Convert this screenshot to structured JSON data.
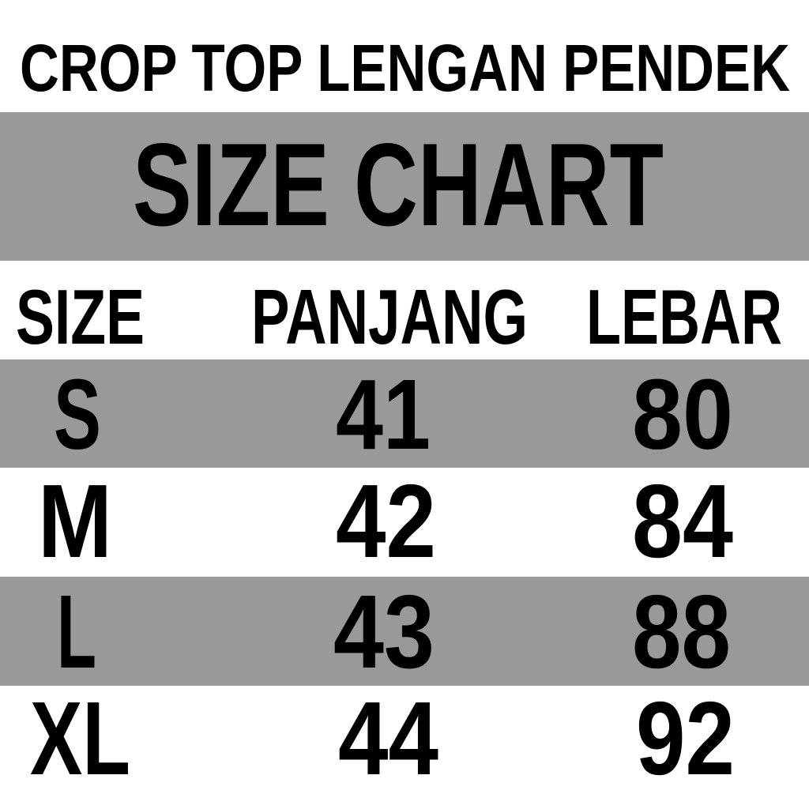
{
  "title": "CROP TOP LENGAN PENDEK",
  "subtitle": "SIZE CHART",
  "colors": {
    "band": "#999999",
    "text": "#000000",
    "background": "#ffffff"
  },
  "table": {
    "headers": [
      "SIZE",
      "PANJANG",
      "LEBAR"
    ],
    "rows": [
      {
        "size": "S",
        "panjang": "41",
        "lebar": "80"
      },
      {
        "size": "M",
        "panjang": "42",
        "lebar": "84"
      },
      {
        "size": "L",
        "panjang": "43",
        "lebar": "88"
      },
      {
        "size": "XL",
        "panjang": "44",
        "lebar": "92"
      }
    ]
  }
}
